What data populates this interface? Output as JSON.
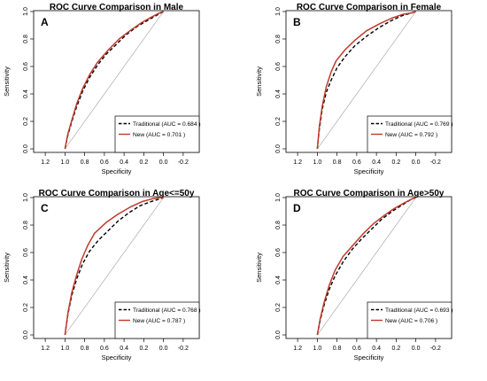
{
  "chart_data": [
    {
      "type": "line",
      "title": "ROC Curve Comparison in Male",
      "panel_label": "A",
      "xlabel": "Specificity",
      "ylabel": "Sensitivity",
      "xlim": [
        1.3,
        -0.3
      ],
      "ylim": [
        0,
        1
      ],
      "x_ticks": [
        "1.2",
        "1.0",
        "0.8",
        "0.6",
        "0.4",
        "0.2",
        "0.0",
        "-0.2"
      ],
      "y_ticks": [
        "0.0",
        "0.2",
        "0.4",
        "0.6",
        "0.8",
        "1.0"
      ],
      "legend_position": "bottom-right",
      "series": [
        {
          "name": "Traditional (AUC = 0.684 )",
          "color": "#000000",
          "dash": "dashed",
          "points": [
            [
              1.0,
              0.0
            ],
            [
              0.97,
              0.1
            ],
            [
              0.93,
              0.2
            ],
            [
              0.88,
              0.31
            ],
            [
              0.82,
              0.42
            ],
            [
              0.75,
              0.52
            ],
            [
              0.67,
              0.61
            ],
            [
              0.58,
              0.69
            ],
            [
              0.48,
              0.76
            ],
            [
              0.38,
              0.83
            ],
            [
              0.27,
              0.89
            ],
            [
              0.15,
              0.94
            ],
            [
              0.05,
              0.98
            ],
            [
              0.0,
              1.0
            ]
          ]
        },
        {
          "name": "New (AUC = 0.701 )",
          "color": "#c0392b",
          "dash": "solid",
          "points": [
            [
              1.0,
              0.0
            ],
            [
              0.97,
              0.11
            ],
            [
              0.93,
              0.21
            ],
            [
              0.88,
              0.33
            ],
            [
              0.82,
              0.44
            ],
            [
              0.75,
              0.54
            ],
            [
              0.67,
              0.63
            ],
            [
              0.56,
              0.72
            ],
            [
              0.45,
              0.8
            ],
            [
              0.34,
              0.86
            ],
            [
              0.22,
              0.92
            ],
            [
              0.12,
              0.96
            ],
            [
              0.04,
              0.99
            ],
            [
              0.0,
              1.0
            ]
          ]
        }
      ]
    },
    {
      "type": "line",
      "title": "ROC Curve Comparison in Female",
      "panel_label": "B",
      "xlabel": "Specificity",
      "ylabel": "Sensitivity",
      "xlim": [
        1.3,
        -0.3
      ],
      "ylim": [
        0,
        1
      ],
      "x_ticks": [
        "1.2",
        "1.0",
        "0.8",
        "0.6",
        "0.4",
        "0.2",
        "0.0",
        "-0.2"
      ],
      "y_ticks": [
        "0.0",
        "0.2",
        "0.4",
        "0.6",
        "0.8",
        "1.0"
      ],
      "legend_position": "bottom-right",
      "series": [
        {
          "name": "Traditional (AUC = 0.769 )",
          "color": "#000000",
          "dash": "dashed",
          "points": [
            [
              1.0,
              0.0
            ],
            [
              0.98,
              0.14
            ],
            [
              0.95,
              0.29
            ],
            [
              0.91,
              0.41
            ],
            [
              0.86,
              0.5
            ],
            [
              0.8,
              0.59
            ],
            [
              0.72,
              0.67
            ],
            [
              0.62,
              0.75
            ],
            [
              0.5,
              0.82
            ],
            [
              0.38,
              0.88
            ],
            [
              0.26,
              0.93
            ],
            [
              0.14,
              0.97
            ],
            [
              0.04,
              0.99
            ],
            [
              0.0,
              1.0
            ]
          ]
        },
        {
          "name": "New (AUC = 0.792 )",
          "color": "#c0392b",
          "dash": "solid",
          "points": [
            [
              1.0,
              0.0
            ],
            [
              0.98,
              0.16
            ],
            [
              0.95,
              0.31
            ],
            [
              0.91,
              0.45
            ],
            [
              0.86,
              0.56
            ],
            [
              0.81,
              0.64
            ],
            [
              0.72,
              0.72
            ],
            [
              0.62,
              0.79
            ],
            [
              0.5,
              0.86
            ],
            [
              0.37,
              0.91
            ],
            [
              0.25,
              0.95
            ],
            [
              0.13,
              0.98
            ],
            [
              0.04,
              0.99
            ],
            [
              0.0,
              1.0
            ]
          ]
        }
      ]
    },
    {
      "type": "line",
      "title": "ROC Curve Comparison in Age<=50y",
      "panel_label": "C",
      "xlabel": "Specificity",
      "ylabel": "Sensitivity",
      "xlim": [
        1.3,
        -0.3
      ],
      "ylim": [
        0,
        1
      ],
      "x_ticks": [
        "1.2",
        "1.0",
        "0.8",
        "0.6",
        "0.4",
        "0.2",
        "0.0",
        "-0.2"
      ],
      "y_ticks": [
        "0.0",
        "0.2",
        "0.4",
        "0.6",
        "0.8",
        "1.0"
      ],
      "legend_position": "bottom-right",
      "series": [
        {
          "name": "Traditional (AUC = 0.768 )",
          "color": "#000000",
          "dash": "dashed",
          "points": [
            [
              1.0,
              0.0
            ],
            [
              0.97,
              0.15
            ],
            [
              0.93,
              0.29
            ],
            [
              0.88,
              0.41
            ],
            [
              0.82,
              0.52
            ],
            [
              0.75,
              0.61
            ],
            [
              0.66,
              0.69
            ],
            [
              0.56,
              0.76
            ],
            [
              0.46,
              0.83
            ],
            [
              0.35,
              0.89
            ],
            [
              0.24,
              0.94
            ],
            [
              0.13,
              0.97
            ],
            [
              0.04,
              0.99
            ],
            [
              0.0,
              1.0
            ]
          ]
        },
        {
          "name": "New (AUC = 0.787 )",
          "color": "#c0392b",
          "dash": "solid",
          "points": [
            [
              1.0,
              0.0
            ],
            [
              0.97,
              0.16
            ],
            [
              0.93,
              0.31
            ],
            [
              0.88,
              0.44
            ],
            [
              0.83,
              0.55
            ],
            [
              0.77,
              0.65
            ],
            [
              0.7,
              0.74
            ],
            [
              0.58,
              0.82
            ],
            [
              0.46,
              0.88
            ],
            [
              0.34,
              0.93
            ],
            [
              0.22,
              0.97
            ],
            [
              0.12,
              0.99
            ],
            [
              0.04,
              1.0
            ],
            [
              0.0,
              1.0
            ]
          ]
        }
      ]
    },
    {
      "type": "line",
      "title": "ROC Curve Comparison in Age>50y",
      "panel_label": "D",
      "xlabel": "Specificity",
      "ylabel": "Sensitivity",
      "xlim": [
        1.3,
        -0.3
      ],
      "ylim": [
        0,
        1
      ],
      "x_ticks": [
        "1.2",
        "1.0",
        "0.8",
        "0.6",
        "0.4",
        "0.2",
        "0.0",
        "-0.2"
      ],
      "y_ticks": [
        "0.0",
        "0.2",
        "0.4",
        "0.6",
        "0.8",
        "1.0"
      ],
      "legend_position": "bottom-right",
      "series": [
        {
          "name": "Traditional (AUC = 0.693 )",
          "color": "#000000",
          "dash": "dashed",
          "points": [
            [
              1.0,
              0.0
            ],
            [
              0.97,
              0.11
            ],
            [
              0.93,
              0.22
            ],
            [
              0.88,
              0.33
            ],
            [
              0.82,
              0.43
            ],
            [
              0.74,
              0.53
            ],
            [
              0.65,
              0.62
            ],
            [
              0.55,
              0.7
            ],
            [
              0.45,
              0.77
            ],
            [
              0.35,
              0.84
            ],
            [
              0.24,
              0.9
            ],
            [
              0.13,
              0.95
            ],
            [
              0.04,
              0.99
            ],
            [
              0.0,
              1.0
            ]
          ]
        },
        {
          "name": "New (AUC = 0.706 )",
          "color": "#c0392b",
          "dash": "solid",
          "points": [
            [
              1.0,
              0.0
            ],
            [
              0.97,
              0.12
            ],
            [
              0.93,
              0.24
            ],
            [
              0.88,
              0.36
            ],
            [
              0.82,
              0.47
            ],
            [
              0.74,
              0.57
            ],
            [
              0.63,
              0.66
            ],
            [
              0.53,
              0.74
            ],
            [
              0.43,
              0.81
            ],
            [
              0.32,
              0.87
            ],
            [
              0.22,
              0.92
            ],
            [
              0.12,
              0.96
            ],
            [
              0.04,
              0.99
            ],
            [
              0.0,
              1.0
            ]
          ]
        }
      ]
    }
  ]
}
